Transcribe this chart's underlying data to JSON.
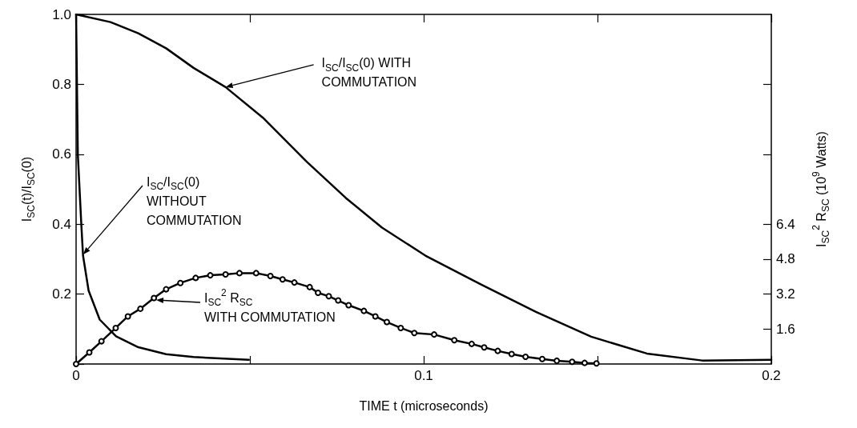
{
  "chart_data": {
    "type": "line",
    "xlabel": "TIME t (microseconds)",
    "ylabel": "I$_{SC}$(t)/I$_{SC}$(0)",
    "y2label": "I$_{SC}$$^{2}$ R$_{SC}$ (10$^{9}$ Watts)",
    "xlim": [
      0,
      0.2
    ],
    "xticks": [
      0,
      {
        "value": 0.05,
        "label": null
      },
      0.1,
      {
        "value": 0.15,
        "label": null
      },
      0.2
    ],
    "ylim": [
      0,
      1
    ],
    "yticks": [
      {
        "value": 0,
        "label": null
      },
      0.2,
      0.4,
      0.6,
      0.8,
      {
        "value": 1,
        "label": "1.0"
      }
    ],
    "y2lim": [
      0,
      16
    ],
    "y2ticks": [
      1.6,
      3.2,
      4.8,
      6.4,
      {
        "value": 9.6,
        "label": null
      },
      {
        "value": 12.8,
        "label": null
      }
    ],
    "marker": "none",
    "line_style": "solid",
    "series": [
      {
        "color": "#000000",
        "x": [
          0,
          0.0099,
          0.0179,
          0.0259,
          0.0338,
          0.043,
          0.0537,
          0.0664,
          0.0776,
          0.088,
          0.1005,
          0.1164,
          0.1323,
          0.1482,
          0.1642,
          0.1801,
          0.2
        ],
        "values": [
          1.0,
          0.978,
          0.946,
          0.903,
          0.847,
          0.792,
          0.705,
          0.578,
          0.475,
          0.39,
          0.31,
          0.228,
          0.149,
          0.078,
          0.03,
          0.01,
          0.012
        ]
      },
      {
        "color": "#000000",
        "x": [
          0,
          0.0005,
          0.0015,
          0.002,
          0.0036,
          0.0068,
          0.0115,
          0.0179,
          0.0259,
          0.0338,
          0.0497
        ],
        "values": [
          1.0,
          0.6,
          0.4,
          0.31,
          0.21,
          0.127,
          0.079,
          0.048,
          0.028,
          0.02,
          0.012
        ]
      },
      {
        "color": "#000000",
        "axis": "y2",
        "marker": "circle",
        "x": [
          0,
          0.0038,
          0.0073,
          0.0114,
          0.0149,
          0.0185,
          0.0224,
          0.0259,
          0.03,
          0.0344,
          0.0386,
          0.043,
          0.047,
          0.0518,
          0.0559,
          0.0594,
          0.0628,
          0.0672,
          0.0696,
          0.0727,
          0.0754,
          0.0784,
          0.0828,
          0.0861,
          0.0894,
          0.0934,
          0.0973,
          0.103,
          0.1088,
          0.1138,
          0.1174,
          0.1213,
          0.1253,
          0.1293,
          0.1341,
          0.1383,
          0.1427,
          0.1463,
          0.1497
        ],
        "values": [
          0,
          0.53,
          1.04,
          1.65,
          2.18,
          2.53,
          3.02,
          3.42,
          3.71,
          3.94,
          4.06,
          4.1,
          4.16,
          4.16,
          4.03,
          3.87,
          3.73,
          3.52,
          3.26,
          3.1,
          2.91,
          2.69,
          2.43,
          2.18,
          1.92,
          1.65,
          1.42,
          1.35,
          1.09,
          0.92,
          0.76,
          0.6,
          0.46,
          0.33,
          0.23,
          0.15,
          0.1,
          0.05,
          0.03
        ]
      }
    ],
    "annotations": [
      {
        "text": "I$_{SC}$/I$_{SC}$(0) WITH\nCOMMUTATION",
        "x": 0.043,
        "y": 0.792
      },
      "I$_{SC}$/I$_{SC}$(0)\nWITHOUT\nCOMMUTATION",
      "I$_{SC}$$^{2}$ R$_{SC}$\nWITH COMMUTATION"
    ]
  }
}
